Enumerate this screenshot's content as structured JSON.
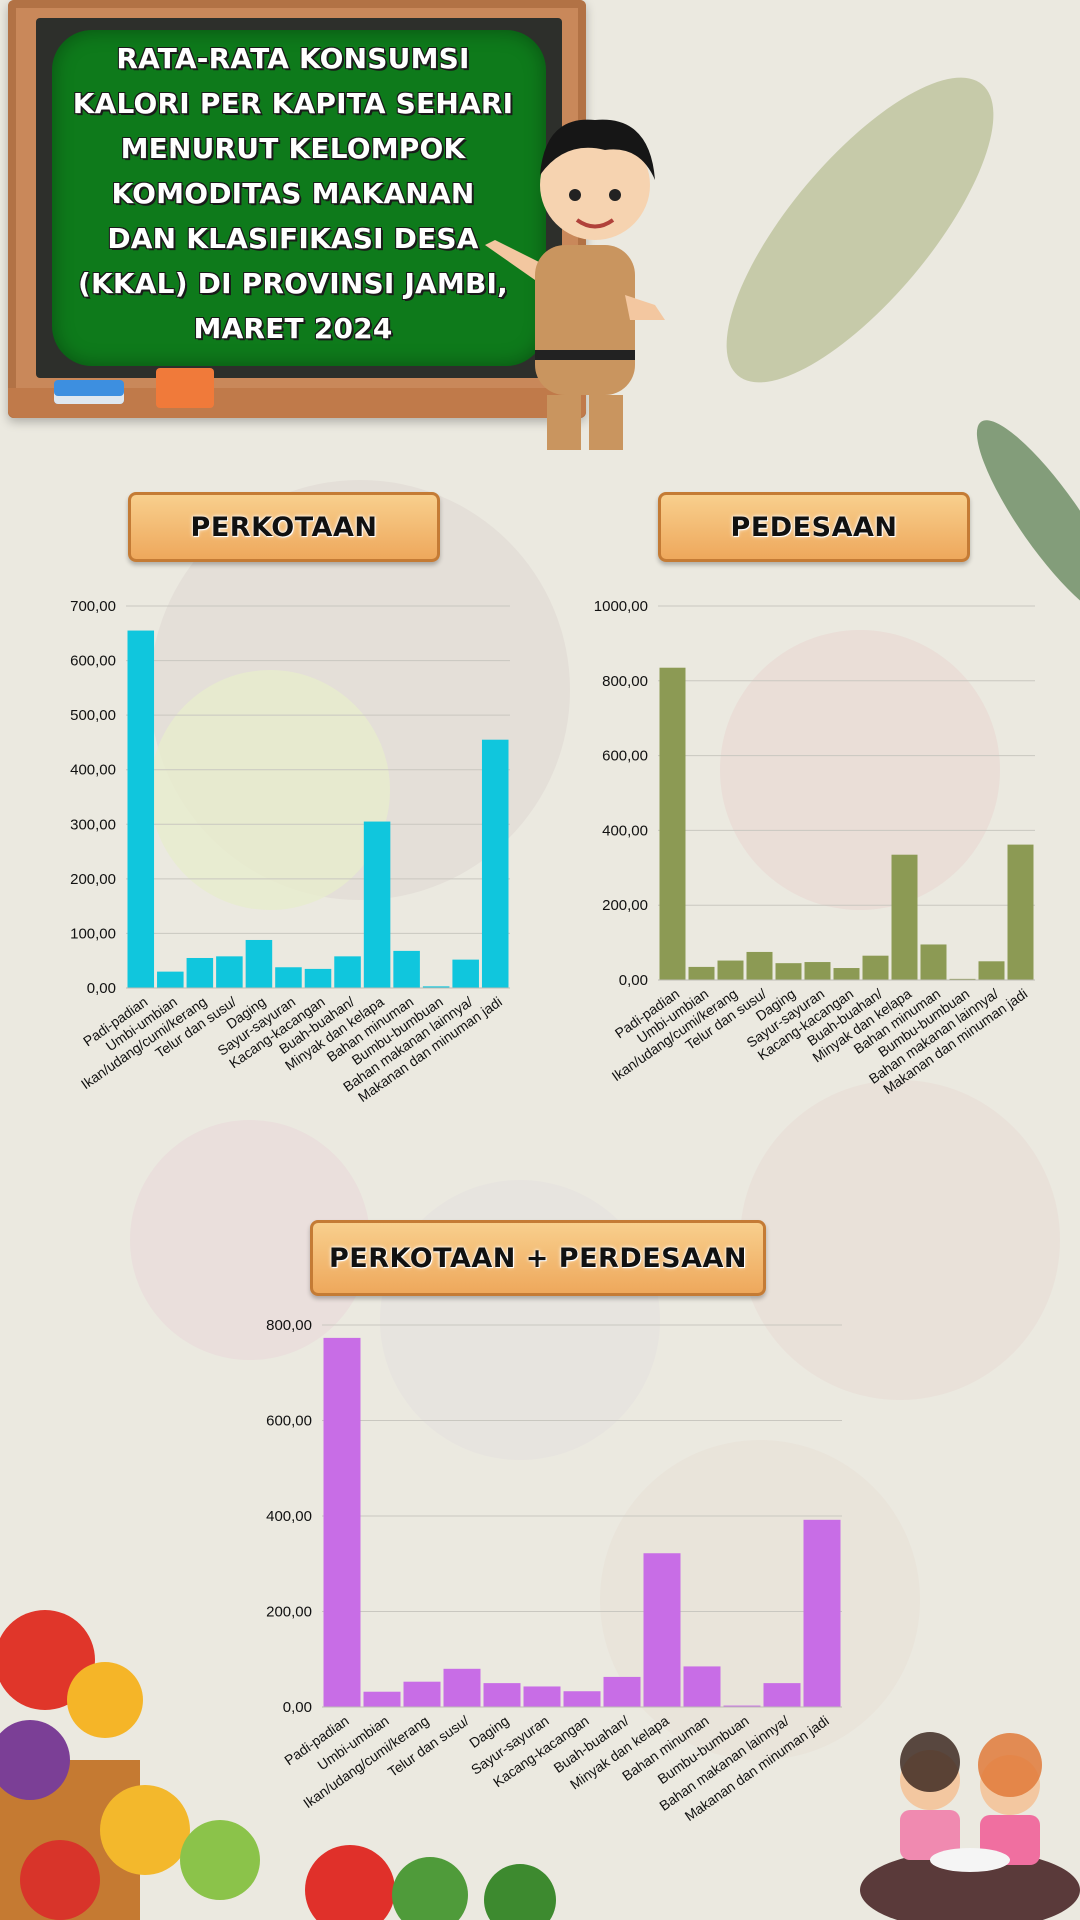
{
  "title_lines": [
    "RATA-RATA KONSUMSI",
    "KALORI PER KAPITA SEHARI",
    "MENURUT KELOMPOK",
    "KOMODITAS MAKANAN",
    "DAN KLASIFIKASI DESA",
    "(KKAL) DI PROVINSI JAMBI,",
    "MARET 2024"
  ],
  "sections": {
    "urban": "PERKOTAAN",
    "rural": "PEDESAAN",
    "combined": "PERKOTAAN + PERDESAAN"
  },
  "chart_data": [
    {
      "type": "bar",
      "title": "PERKOTAAN",
      "color": "#10c6dd",
      "categories": [
        "Padi-padian",
        "Umbi-umbian",
        "Ikan/udang/cumi/kerang",
        "Telur dan susu/",
        "Daging",
        "Sayur-sayuran",
        "Kacang-kacangan",
        "Buah-buahan/",
        "Minyak dan kelapa",
        "Bahan minuman",
        "Bumbu-bumbuan",
        "Bahan makanan lainnya/",
        "Makanan dan minuman jadi"
      ],
      "values": [
        655,
        30,
        55,
        58,
        88,
        38,
        35,
        58,
        305,
        68,
        3,
        52,
        455
      ],
      "ylim": [
        0,
        700
      ],
      "yticks": [
        "0,00",
        "100,00",
        "200,00",
        "300,00",
        "400,00",
        "500,00",
        "600,00",
        "700,00"
      ],
      "ytick_values": [
        0,
        100,
        200,
        300,
        400,
        500,
        600,
        700
      ],
      "grid": true
    },
    {
      "type": "bar",
      "title": "PEDESAAN",
      "color": "#8c9a54",
      "categories": [
        "Padi-padian",
        "Umbi-umbian",
        "Ikan/udang/cumi/kerang",
        "Telur dan susu/",
        "Daging",
        "Sayur-sayuran",
        "Kacang-kacangan",
        "Buah-buahan/",
        "Minyak dan kelapa",
        "Bahan minuman",
        "Bumbu-bumbuan",
        "Bahan makanan lainnya/",
        "Makanan dan minuman jadi"
      ],
      "values": [
        835,
        35,
        52,
        75,
        45,
        48,
        32,
        65,
        335,
        95,
        3,
        50,
        362
      ],
      "ylim": [
        0,
        1000
      ],
      "yticks": [
        "0,00",
        "200,00",
        "400,00",
        "600,00",
        "800,00",
        "1000,00"
      ],
      "ytick_values": [
        0,
        200,
        400,
        600,
        800,
        1000
      ],
      "grid": true
    },
    {
      "type": "bar",
      "title": "PERKOTAAN + PERDESAAN",
      "color": "#c86de6",
      "categories": [
        "Padi-padian",
        "Umbi-umbian",
        "Ikan/udang/cumi/kerang",
        "Telur dan susu/",
        "Daging",
        "Sayur-sayuran",
        "Kacang-kacangan",
        "Buah-buahan/",
        "Minyak dan kelapa",
        "Bahan minuman",
        "Bumbu-bumbuan",
        "Bahan makanan lainnya/",
        "Makanan dan minuman jadi"
      ],
      "values": [
        773,
        32,
        53,
        80,
        50,
        43,
        33,
        63,
        322,
        85,
        3,
        50,
        392
      ],
      "ylim": [
        0,
        800
      ],
      "yticks": [
        "0,00",
        "200,00",
        "400,00",
        "600,00",
        "800,00"
      ],
      "ytick_values": [
        0,
        200,
        400,
        600,
        800
      ],
      "grid": true
    }
  ]
}
